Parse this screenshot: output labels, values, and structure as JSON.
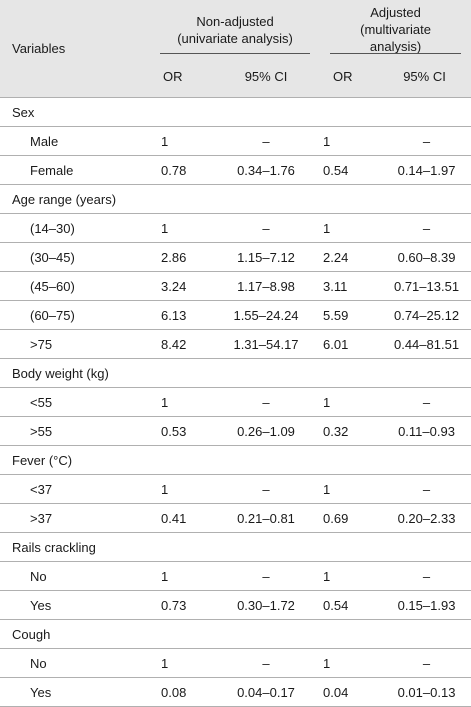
{
  "header": {
    "variables": "Variables",
    "nonadjusted_line1": "Non-adjusted",
    "nonadjusted_line2": "(univariate analysis)",
    "adjusted_line1": "Adjusted",
    "adjusted_line2": "(multivariate",
    "adjusted_line3": "analysis)",
    "or": "OR",
    "ci": "95% CI"
  },
  "groups": [
    {
      "label": "Sex",
      "rows": [
        {
          "name": "Male",
          "or1": "1",
          "ci1": "–",
          "or2": "1",
          "ci2": "–"
        },
        {
          "name": "Female",
          "or1": "0.78",
          "ci1": "0.34–1.76",
          "or2": "0.54",
          "ci2": "0.14–1.97"
        }
      ]
    },
    {
      "label": "Age range (years)",
      "rows": [
        {
          "name": "(14–30)",
          "or1": "1",
          "ci1": "–",
          "or2": "1",
          "ci2": "–"
        },
        {
          "name": "(30–45)",
          "or1": "2.86",
          "ci1": "1.15–7.12",
          "or2": "2.24",
          "ci2": "0.60–8.39"
        },
        {
          "name": "(45–60)",
          "or1": "3.24",
          "ci1": "1.17–8.98",
          "or2": "3.11",
          "ci2": "0.71–13.51"
        },
        {
          "name": "(60–75)",
          "or1": "6.13",
          "ci1": "1.55–24.24",
          "or2": "5.59",
          "ci2": "0.74–25.12"
        },
        {
          "name": ">75",
          "or1": "8.42",
          "ci1": "1.31–54.17",
          "or2": "6.01",
          "ci2": "0.44–81.51"
        }
      ]
    },
    {
      "label": "Body weight (kg)",
      "rows": [
        {
          "name": "<55",
          "or1": "1",
          "ci1": "–",
          "or2": "1",
          "ci2": "–"
        },
        {
          "name": ">55",
          "or1": "0.53",
          "ci1": "0.26–1.09",
          "or2": "0.32",
          "ci2": "0.11–0.93"
        }
      ]
    },
    {
      "label": "Fever (°C)",
      "rows": [
        {
          "name": "<37",
          "or1": "1",
          "ci1": "–",
          "or2": "1",
          "ci2": "–"
        },
        {
          "name": ">37",
          "or1": "0.41",
          "ci1": "0.21–0.81",
          "or2": "0.69",
          "ci2": "0.20–2.33"
        }
      ]
    },
    {
      "label": "Rails crackling",
      "rows": [
        {
          "name": "No",
          "or1": "1",
          "ci1": "–",
          "or2": "1",
          "ci2": "–"
        },
        {
          "name": "Yes",
          "or1": "0.73",
          "ci1": "0.30–1.72",
          "or2": "0.54",
          "ci2": "0.15–1.93"
        }
      ]
    },
    {
      "label": "Cough",
      "rows": [
        {
          "name": "No",
          "or1": "1",
          "ci1": "–",
          "or2": "1",
          "ci2": "–"
        },
        {
          "name": "Yes",
          "or1": "0.08",
          "ci1": "0.04–0.17",
          "or2": "0.04",
          "ci2": "0.01–0.13"
        }
      ]
    }
  ]
}
